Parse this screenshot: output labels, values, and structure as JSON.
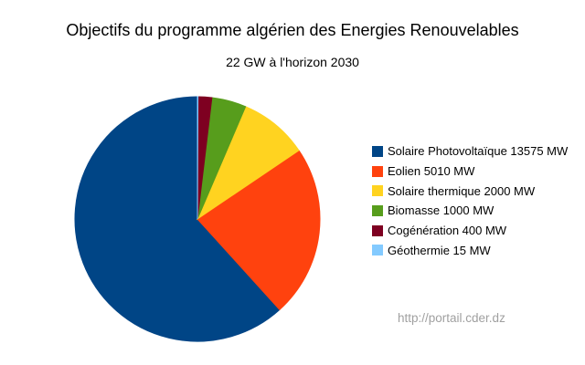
{
  "page": {
    "background": "#ffffff"
  },
  "chart_data": {
    "type": "pie",
    "title": "Objectifs du programme algérien des Energies Renouvelables",
    "subtitle": "22 GW à l'horizon 2030",
    "unit": "MW",
    "total": 22000,
    "categories": [
      "Solaire Photovoltaïque",
      "Eolien",
      "Solaire thermique",
      "Biomasse",
      "Cogénération",
      "Géothermie"
    ],
    "values": [
      13575,
      5010,
      2000,
      1000,
      400,
      15
    ],
    "colors": [
      "#004586",
      "#ff420e",
      "#ffd320",
      "#579d1c",
      "#7e0021",
      "#83caff"
    ],
    "legend": {
      "position": "right",
      "labels": [
        "Solaire Photovoltaïque 13575 MW",
        "Eolien 5010 MW",
        "Solaire thermique 2000 MW",
        "Biomasse 1000 MW",
        "Cogénération 400 MW",
        "Géothermie 15 MW"
      ]
    },
    "layout": {
      "start_at": "top",
      "winding": "ccw",
      "grid": false
    }
  },
  "footer": {
    "url": "http://portail.cder.dz",
    "color": "#a0a0a0"
  }
}
